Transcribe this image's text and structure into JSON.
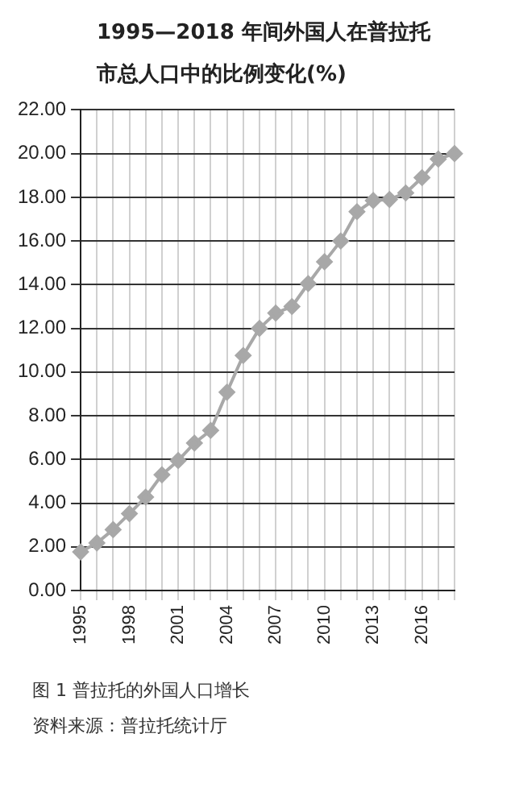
{
  "chart_data": {
    "type": "line",
    "title": "1995—2018 年间外国人在普拉托市总人口中的比例变化(%)",
    "categories": [
      "1995",
      null,
      null,
      "1998",
      null,
      null,
      "2001",
      null,
      null,
      "2004",
      null,
      null,
      "2007",
      null,
      null,
      "2010",
      null,
      null,
      "2013",
      null,
      null,
      "2016",
      null,
      null
    ],
    "series": [
      {
        "color": "#a8a8a8",
        "values": [
          1.77,
          2.18,
          2.79,
          3.52,
          4.28,
          5.3,
          5.95,
          6.75,
          7.33,
          9.08,
          10.76,
          12.0,
          12.7,
          13.0,
          14.05,
          15.05,
          16.0,
          17.34,
          17.85,
          17.9,
          18.2,
          18.9,
          19.75,
          20.0
        ]
      }
    ],
    "ylim": [
      0,
      22
    ],
    "yticks": [
      {
        "value": 0,
        "label": "0.00"
      },
      {
        "value": 2,
        "label": "2.00"
      },
      {
        "value": 4,
        "label": "4.00"
      },
      {
        "value": 6,
        "label": "6.00"
      },
      {
        "value": 8,
        "label": "8.00"
      },
      {
        "value": 10,
        "label": "10.00"
      },
      {
        "value": 12,
        "label": "12.00"
      },
      {
        "value": 14,
        "label": "14.00"
      },
      {
        "value": 16,
        "label": "16.00"
      },
      {
        "value": 18,
        "label": "18.00"
      },
      {
        "value": 20,
        "label": "20.00"
      },
      {
        "value": 22,
        "label": "22.00"
      }
    ],
    "grid": true,
    "marker": "diamond",
    "line_style": "solid",
    "annotations": [
      "图 1   普拉托的外国人口增长",
      "资料来源：普拉托统计厅"
    ]
  }
}
